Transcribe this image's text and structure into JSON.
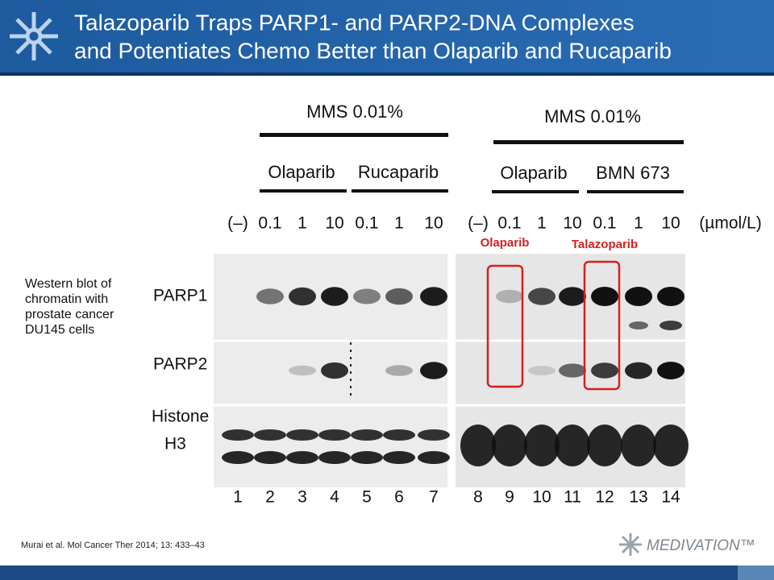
{
  "header": {
    "title_lines": [
      "Talazoparib Traps PARP1- and PARP2-DNA Complexes",
      "and Potentiates Chemo Better than Olaparib and Rucaparib"
    ]
  },
  "caption": "Western blot of chromatin with prostate cancer DU145 cells",
  "blot": {
    "left_panel": {
      "treatment": "MMS 0.01%",
      "groups": [
        "Olaparib",
        "Rucaparib"
      ],
      "doses": [
        "(–)",
        "0.1",
        "1",
        "10",
        "0.1",
        "1",
        "10"
      ]
    },
    "right_panel": {
      "treatment": "MMS 0.01%",
      "groups": [
        "Olaparib",
        "BMN 673"
      ],
      "doses": [
        "(–)",
        "0.1",
        "1",
        "10",
        "0.1",
        "1",
        "10"
      ]
    },
    "dose_unit": "(µmol/L)",
    "row_labels": [
      "PARP1",
      "PARP2",
      "Histone",
      "H3"
    ],
    "lane_numbers": [
      "1",
      "2",
      "3",
      "4",
      "5",
      "6",
      "7",
      "8",
      "9",
      "10",
      "11",
      "12",
      "13",
      "14"
    ],
    "highlights": [
      "Olaparib",
      "Talazoparib"
    ]
  },
  "reference": "Murai et al. Mol Cancer Ther 2014; 13: 433–43",
  "logo": "MEDIVATION™"
}
